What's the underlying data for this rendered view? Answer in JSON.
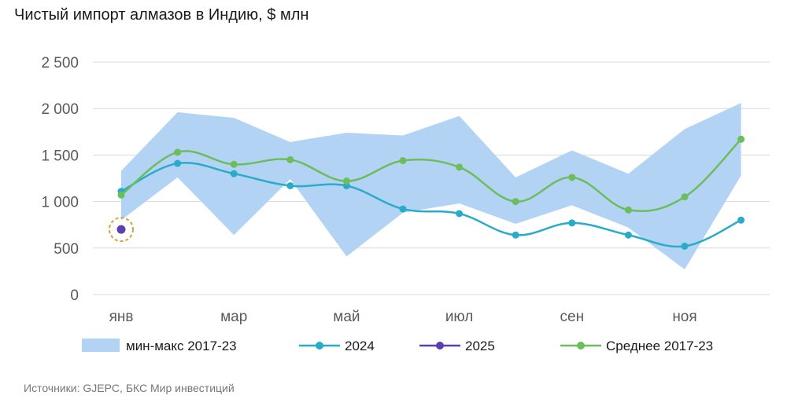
{
  "title": "Чистый импорт алмазов в Индию, $ млн",
  "source": "Источники: GJEPC, БКС Мир инвестиций",
  "chart_data": {
    "type": "line",
    "title": "Чистый импорт алмазов в Индию, $ млн",
    "ylim": [
      0,
      2500
    ],
    "yticks": [
      0,
      500,
      1000,
      1500,
      2000,
      2500
    ],
    "ytick_labels": [
      "0",
      "500",
      "1 000",
      "1 500",
      "2 000",
      "2 500"
    ],
    "months": 12,
    "xtick_positions": [
      0,
      2,
      4,
      6,
      8,
      10
    ],
    "xtick_labels": [
      "янв",
      "мар",
      "май",
      "июл",
      "сен",
      "ноя"
    ],
    "grid": "horizontal",
    "legend_position": "bottom",
    "band": {
      "name": "мин-макс 2017-23",
      "color": "#b3d3f5",
      "min": [
        800,
        1260,
        640,
        1240,
        410,
        880,
        980,
        760,
        960,
        720,
        270,
        1280
      ],
      "max": [
        1330,
        1960,
        1900,
        1640,
        1740,
        1710,
        1920,
        1260,
        1550,
        1300,
        1780,
        2060
      ]
    },
    "series": [
      {
        "name": "2024",
        "color": "#2aabc8",
        "values": [
          1110,
          1410,
          1300,
          1170,
          1170,
          920,
          870,
          640,
          770,
          640,
          520,
          800
        ]
      },
      {
        "name": "2025",
        "color": "#5b3fae",
        "values": [
          700
        ],
        "highlight_color": "#d4a23a"
      },
      {
        "name": "Среднее 2017-23",
        "color": "#6cbd5b",
        "values": [
          1070,
          1530,
          1400,
          1450,
          1220,
          1440,
          1370,
          1000,
          1260,
          910,
          1050,
          1670
        ]
      }
    ]
  }
}
